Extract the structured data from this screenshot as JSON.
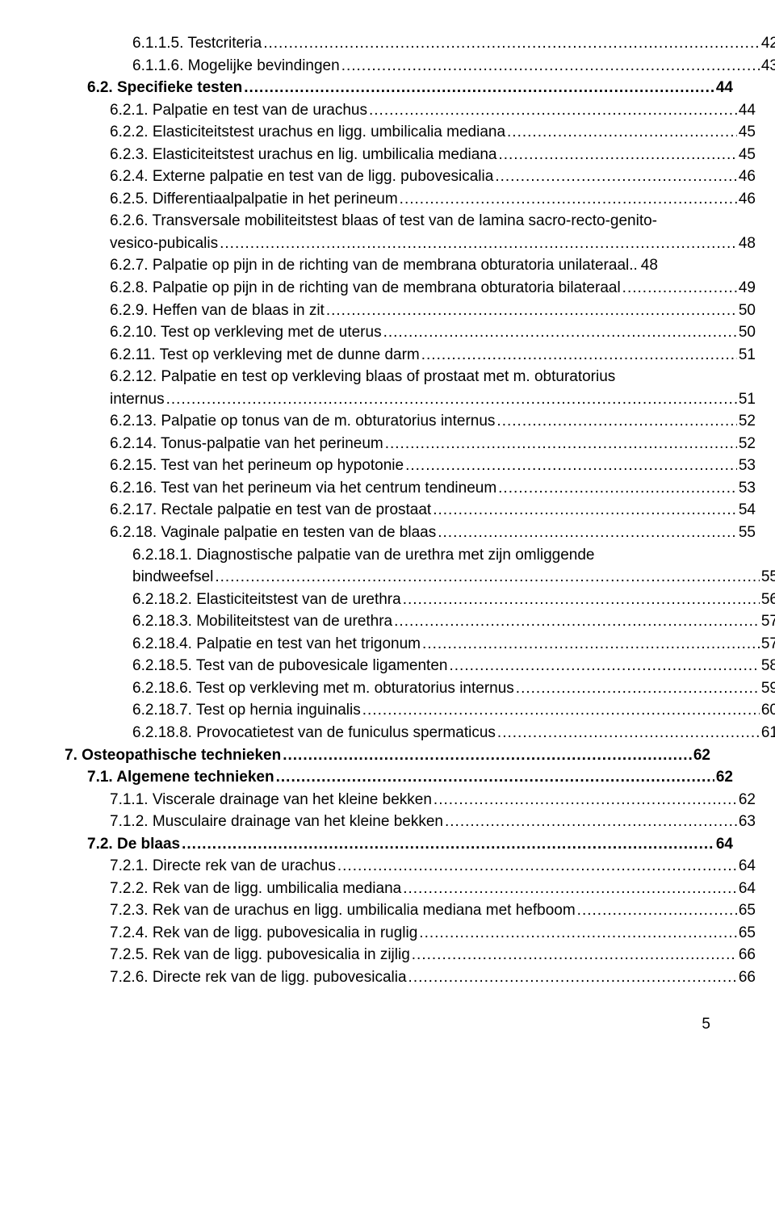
{
  "page_number": "5",
  "entries": [
    {
      "indent": 3,
      "bold": false,
      "text": "6.1.1.5. Testcriteria",
      "page": "42"
    },
    {
      "indent": 3,
      "bold": false,
      "text": "6.1.1.6. Mogelijke bevindingen",
      "page": "43"
    },
    {
      "indent": 1,
      "bold": true,
      "text": "6.2. Specifieke testen",
      "page": "44"
    },
    {
      "indent": 2,
      "bold": false,
      "text": "6.2.1. Palpatie en test van de urachus",
      "page": "44"
    },
    {
      "indent": 2,
      "bold": false,
      "text": "6.2.2. Elasticiteitstest urachus en ligg. umbilicalia mediana",
      "page": "45"
    },
    {
      "indent": 2,
      "bold": false,
      "text": "6.2.3. Elasticiteitstest urachus en lig. umbilicalia mediana",
      "page": "45"
    },
    {
      "indent": 2,
      "bold": false,
      "text": "6.2.4. Externe palpatie en test van de ligg. pubovesicalia",
      "page": "46"
    },
    {
      "indent": 2,
      "bold": false,
      "text": "6.2.5. Differentiaalpalpatie in het perineum",
      "page": "46"
    },
    {
      "indent": 2,
      "bold": false,
      "prefix": "6.2.6. Transversale mobiliteitstest blaas of test van de lamina sacro-recto-genito-",
      "text": "vesico-pubicalis",
      "page": "48"
    },
    {
      "indent": 2,
      "bold": false,
      "text": "6.2.7. Palpatie op pijn in de richting van de membrana obturatoria unilateraal..",
      "page": "48",
      "nodots": true
    },
    {
      "indent": 2,
      "bold": false,
      "text": "6.2.8. Palpatie op pijn in de richting van de membrana obturatoria bilateraal",
      "page": "49"
    },
    {
      "indent": 2,
      "bold": false,
      "text": "6.2.9. Heffen van de blaas in zit",
      "page": "50"
    },
    {
      "indent": 2,
      "bold": false,
      "text": "6.2.10. Test op verkleving met de uterus",
      "page": "50"
    },
    {
      "indent": 2,
      "bold": false,
      "text": "6.2.11. Test op verkleving met de dunne darm",
      "page": "51"
    },
    {
      "indent": 2,
      "bold": false,
      "prefix": "6.2.12. Palpatie en test op verkleving blaas of prostaat met m. obturatorius",
      "text": "internus",
      "page": "51"
    },
    {
      "indent": 2,
      "bold": false,
      "text": "6.2.13. Palpatie op tonus van de m. obturatorius internus",
      "page": "52"
    },
    {
      "indent": 2,
      "bold": false,
      "text": "6.2.14. Tonus-palpatie van het perineum",
      "page": "52"
    },
    {
      "indent": 2,
      "bold": false,
      "text": "6.2.15. Test van het perineum op hypotonie",
      "page": "53"
    },
    {
      "indent": 2,
      "bold": false,
      "text": "6.2.16. Test van het perineum via het centrum tendineum",
      "page": "53"
    },
    {
      "indent": 2,
      "bold": false,
      "text": "6.2.17. Rectale palpatie en test van de prostaat",
      "page": "54"
    },
    {
      "indent": 2,
      "bold": false,
      "text": "6.2.18. Vaginale palpatie en testen van de blaas",
      "page": "55"
    },
    {
      "indent": 3,
      "bold": false,
      "prefix": "6.2.18.1. Diagnostische palpatie van de urethra met zijn omliggende",
      "text": "bindweefsel",
      "page": "55"
    },
    {
      "indent": 3,
      "bold": false,
      "text": "6.2.18.2. Elasticiteitstest van de urethra",
      "page": "56"
    },
    {
      "indent": 3,
      "bold": false,
      "text": "6.2.18.3. Mobiliteitstest van de urethra",
      "page": "57"
    },
    {
      "indent": 3,
      "bold": false,
      "text": "6.2.18.4. Palpatie en test van het trigonum",
      "page": "57"
    },
    {
      "indent": 3,
      "bold": false,
      "text": "6.2.18.5. Test van de pubovesicale ligamenten",
      "page": "58"
    },
    {
      "indent": 3,
      "bold": false,
      "text": "6.2.18.6. Test op verkleving met m. obturatorius internus",
      "page": "59"
    },
    {
      "indent": 3,
      "bold": false,
      "text": "6.2.18.7. Test op hernia inguinalis",
      "page": "60"
    },
    {
      "indent": 3,
      "bold": false,
      "text": "6.2.18.8. Provocatietest van de funiculus spermaticus",
      "page": "61"
    },
    {
      "indent": 0,
      "bold": true,
      "text": "7. Osteopathische technieken",
      "page": "62"
    },
    {
      "indent": 1,
      "bold": true,
      "text": "7.1. Algemene technieken",
      "page": "62"
    },
    {
      "indent": 2,
      "bold": false,
      "text": "7.1.1. Viscerale drainage van het kleine bekken",
      "page": "62"
    },
    {
      "indent": 2,
      "bold": false,
      "text": "7.1.2. Musculaire drainage van het kleine bekken",
      "page": "63"
    },
    {
      "indent": 1,
      "bold": true,
      "text": "7.2. De blaas",
      "page": "64"
    },
    {
      "indent": 2,
      "bold": false,
      "text": "7.2.1. Directe rek van de urachus",
      "page": "64"
    },
    {
      "indent": 2,
      "bold": false,
      "text": "7.2.2. Rek van de ligg. umbilicalia mediana",
      "page": "64"
    },
    {
      "indent": 2,
      "bold": false,
      "text": "7.2.3. Rek van de urachus en ligg. umbilicalia mediana met hefboom",
      "page": "65"
    },
    {
      "indent": 2,
      "bold": false,
      "text": "7.2.4. Rek van de ligg. pubovesicalia in ruglig",
      "page": "65"
    },
    {
      "indent": 2,
      "bold": false,
      "text": "7.2.5. Rek van de ligg. pubovesicalia in zijlig",
      "page": "66"
    },
    {
      "indent": 2,
      "bold": false,
      "text": "7.2.6. Directe rek van de ligg. pubovesicalia",
      "page": "66"
    }
  ]
}
